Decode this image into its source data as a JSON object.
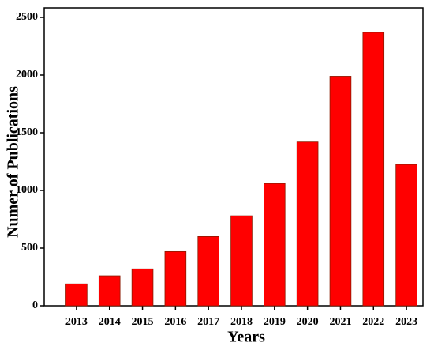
{
  "chart_data": {
    "type": "bar",
    "x_label": "Years",
    "y_label": "Numer of Publications",
    "categories": [
      "2013",
      "2014",
      "2015",
      "2016",
      "2017",
      "2018",
      "2019",
      "2020",
      "2021",
      "2022",
      "2023"
    ],
    "values": [
      190,
      260,
      320,
      470,
      600,
      780,
      1060,
      1420,
      1990,
      2370,
      1225
    ],
    "color": "#ff0000",
    "ylim": [
      0,
      2500
    ],
    "yticks": [
      0,
      500,
      1000,
      1500,
      2000,
      2500
    ],
    "grid": false
  }
}
